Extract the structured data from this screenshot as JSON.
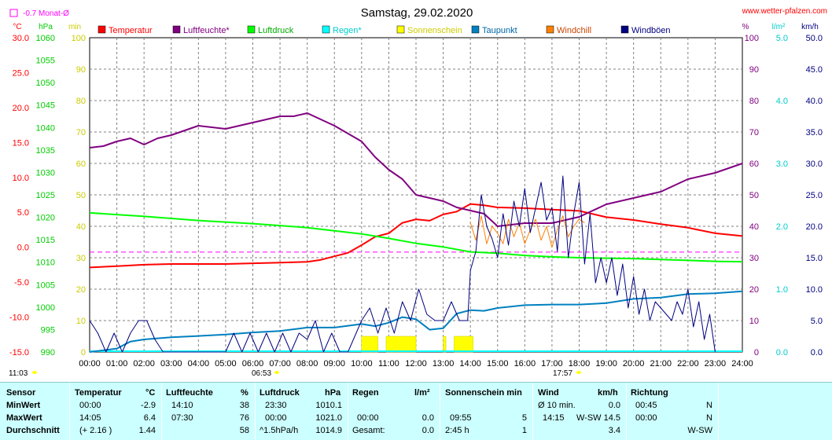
{
  "header": {
    "title": "Samstag, 29.02.2020",
    "website": "www.wetter-pfalzen.com",
    "monthly_avg_label": "-0.7 Monat-Ø",
    "sunrise": "06:53",
    "sunset": "17:57",
    "current_time": "11:03"
  },
  "chart_data": {
    "type": "line",
    "title": "Samstag, 29.02.2020",
    "x_ticks": [
      "00:00",
      "01:00",
      "02:00",
      "03:00",
      "04:00",
      "05:00",
      "06:00",
      "07:00",
      "08:00",
      "09:00",
      "10:00",
      "11:00",
      "12:00",
      "13:00",
      "14:00",
      "15:00",
      "16:00",
      "17:00",
      "18:00",
      "19:00",
      "20:00",
      "21:00",
      "22:00",
      "23:00",
      "24:00"
    ],
    "xlim": [
      0,
      24
    ],
    "axes": {
      "temperature": {
        "unit": "°C",
        "lim": [
          -15,
          30
        ],
        "ticks": [
          "30.0",
          "25.0",
          "20.0",
          "15.0",
          "10.0",
          "5.0",
          "0.0",
          "-5.0",
          "-10.0",
          "-15.0"
        ],
        "color": "#ff0000"
      },
      "pressure": {
        "unit": "hPa",
        "lim": [
          990,
          1060
        ],
        "ticks": [
          "1060",
          "1055",
          "1050",
          "1045",
          "1040",
          "1035",
          "1030",
          "1025",
          "1020",
          "1015",
          "1010",
          "1005",
          "1000",
          "995",
          "990"
        ],
        "color": "#00cc00"
      },
      "sunshine": {
        "unit": "min",
        "lim": [
          0,
          100
        ],
        "ticks": [
          "100",
          "90",
          "80",
          "70",
          "60",
          "50",
          "40",
          "30",
          "20",
          "10",
          "0"
        ],
        "color": "#cccc00"
      },
      "humidity": {
        "unit": "%",
        "lim": [
          0,
          100
        ],
        "ticks": [
          "100",
          "90",
          "80",
          "70",
          "60",
          "50",
          "40",
          "30",
          "20",
          "10",
          "0"
        ],
        "color": "#800080"
      },
      "rain": {
        "unit": "l/m²",
        "lim": [
          0,
          5
        ],
        "ticks": [
          "5.0",
          "4.0",
          "3.0",
          "2.0",
          "1.0",
          "0.0"
        ],
        "color": "#00cccc"
      },
      "wind": {
        "unit": "km/h",
        "lim": [
          0,
          50
        ],
        "ticks": [
          "50.0",
          "45.0",
          "40.0",
          "35.0",
          "30.0",
          "25.0",
          "20.0",
          "15.0",
          "10.0",
          "5.0",
          "0.0"
        ],
        "color": "#000080"
      }
    },
    "legend": [
      {
        "name": "Temperatur",
        "color": "#ff0000"
      },
      {
        "name": "Luftfeuchte*",
        "color": "#800080"
      },
      {
        "name": "Luftdruck",
        "color": "#00ff00"
      },
      {
        "name": "Regen*",
        "color": "#00ffff"
      },
      {
        "name": "Sonnenschein",
        "color": "#ffff00"
      },
      {
        "name": "Taupunkt",
        "color": "#0080c0"
      },
      {
        "name": "Windchill",
        "color": "#ff8000"
      },
      {
        "name": "Windböen",
        "color": "#000080"
      }
    ],
    "monthly_avg_temp": -0.7,
    "series": [
      {
        "name": "Temperatur",
        "axis": "temperature",
        "color": "#ff0000",
        "x": [
          0,
          1,
          2,
          3,
          4,
          5,
          6,
          7,
          8,
          8.5,
          9,
          9.5,
          10,
          10.5,
          11,
          11.5,
          12,
          12.5,
          13,
          13.5,
          14,
          14.5,
          15,
          16,
          17,
          18,
          19,
          20,
          21,
          22,
          23,
          24
        ],
        "y": [
          -2.9,
          -2.7,
          -2.5,
          -2.4,
          -2.4,
          -2.4,
          -2.3,
          -2.2,
          -2.1,
          -1.8,
          -1.3,
          -0.8,
          0.3,
          1.5,
          2.0,
          3.5,
          4.0,
          3.8,
          4.7,
          5.1,
          6.2,
          6.0,
          5.7,
          5.6,
          5.4,
          5.2,
          4.3,
          3.9,
          3.3,
          2.8,
          2.0,
          1.6
        ]
      },
      {
        "name": "Luftfeuchte*",
        "axis": "humidity",
        "color": "#800080",
        "x": [
          0,
          0.5,
          1,
          1.5,
          2,
          2.5,
          3,
          4,
          5,
          6,
          7,
          7.5,
          8,
          9,
          10,
          10.5,
          11,
          11.5,
          12,
          12.5,
          13,
          13.5,
          14,
          14.5,
          15,
          16,
          17,
          18,
          19,
          20,
          21,
          22,
          23,
          24
        ],
        "y": [
          65,
          65.5,
          67,
          68,
          66,
          68,
          69,
          72,
          71,
          73,
          75,
          75,
          76,
          72,
          67,
          62,
          58,
          55,
          50,
          49,
          48,
          46,
          45,
          44,
          40,
          41,
          41,
          43,
          47,
          49,
          51,
          55,
          57,
          60
        ]
      },
      {
        "name": "Luftdruck",
        "axis": "pressure",
        "color": "#00ff00",
        "x": [
          0,
          2,
          4,
          6,
          8,
          9,
          10,
          11,
          12,
          13,
          14,
          15,
          16,
          17,
          18,
          19,
          20,
          21,
          22,
          23,
          24
        ],
        "y": [
          1021,
          1020.2,
          1019.3,
          1018.6,
          1017.7,
          1017,
          1016.3,
          1015.3,
          1014.2,
          1013.4,
          1012.3,
          1012,
          1011.5,
          1011.2,
          1011,
          1010.9,
          1010.8,
          1010.6,
          1010.4,
          1010.2,
          1010.1
        ]
      },
      {
        "name": "Taupunkt",
        "axis": "temperature",
        "color": "#0080c0",
        "x": [
          0,
          1,
          1.5,
          2,
          3,
          4,
          5,
          6,
          7,
          8,
          9,
          10,
          10.5,
          11,
          11.5,
          12,
          12.5,
          13,
          13.5,
          14,
          14.5,
          15,
          16,
          17,
          18,
          19,
          20,
          21,
          22,
          23,
          24
        ],
        "y": [
          -15.0,
          -14.5,
          -13.5,
          -13.2,
          -12.9,
          -12.7,
          -12.5,
          -12.2,
          -12.0,
          -11.5,
          -11.5,
          -11.0,
          -11.3,
          -10.8,
          -10.0,
          -10.3,
          -11.8,
          -11.6,
          -9.5,
          -9.0,
          -9.1,
          -8.7,
          -8.3,
          -8.2,
          -8.2,
          -8.0,
          -7.4,
          -7.2,
          -6.7,
          -6.6,
          -6.3
        ]
      },
      {
        "name": "Windchill",
        "axis": "temperature",
        "color": "#ff8000",
        "x": [
          14,
          14.2,
          14.4,
          14.6,
          14.8,
          15,
          15.2,
          15.4,
          15.6,
          15.8,
          16,
          16.2,
          16.4,
          16.6,
          16.8,
          17,
          17.2,
          17.4,
          17.6,
          17.8,
          18,
          18.2
        ],
        "y": [
          3.5,
          1.0,
          4.5,
          0.5,
          3.0,
          2.0,
          0.5,
          4.0,
          1.5,
          3.5,
          0.5,
          2.5,
          4.0,
          1.0,
          3.0,
          0.0,
          2.5,
          4.5,
          1.5,
          3.0,
          4.0,
          3.5
        ]
      },
      {
        "name": "Windböen",
        "axis": "wind",
        "color": "#000080",
        "x": [
          0,
          0.3,
          0.6,
          0.9,
          1.2,
          1.5,
          1.8,
          2.1,
          2.4,
          2.7,
          3,
          3.5,
          4,
          4.5,
          5,
          5.3,
          5.6,
          5.9,
          6.2,
          6.5,
          6.8,
          7.1,
          7.4,
          7.7,
          8,
          8.3,
          8.6,
          8.9,
          9.2,
          9.5,
          10,
          10.3,
          10.6,
          10.9,
          11.2,
          11.5,
          11.8,
          12.1,
          12.4,
          12.7,
          13,
          13.3,
          13.6,
          13.9,
          14,
          14.2,
          14.4,
          14.6,
          14.8,
          15,
          15.2,
          15.4,
          15.6,
          15.8,
          16,
          16.2,
          16.4,
          16.6,
          16.8,
          17,
          17.2,
          17.4,
          17.6,
          17.8,
          18,
          18.2,
          18.4,
          18.6,
          18.8,
          19,
          19.2,
          19.4,
          19.6,
          19.8,
          20,
          20.2,
          20.4,
          20.6,
          20.8,
          21,
          21.2,
          21.4,
          21.6,
          21.8,
          22,
          22.2,
          22.4,
          22.6,
          22.8,
          23
        ],
        "y": [
          5,
          3,
          0,
          3,
          0,
          3,
          5,
          5,
          2,
          0,
          0,
          0,
          0,
          0,
          0,
          3,
          0,
          3,
          0,
          3,
          0,
          3,
          0,
          3,
          2,
          5,
          0,
          3,
          0,
          0,
          5,
          7,
          3,
          7,
          3,
          8,
          5,
          10,
          6,
          5,
          5,
          8,
          5,
          5,
          13,
          16,
          25,
          20,
          18,
          15,
          22,
          17,
          24,
          20,
          26,
          19,
          23,
          27,
          21,
          23,
          16,
          28,
          15,
          22,
          27,
          14,
          22,
          11,
          15,
          11,
          15,
          9,
          14,
          7,
          12,
          6,
          10,
          5,
          8,
          7,
          6,
          5,
          8,
          6,
          10,
          4,
          8,
          2,
          6,
          0
        ]
      }
    ],
    "sunshine_bars": [
      {
        "start": 10.0,
        "end": 10.6,
        "value": 5
      },
      {
        "start": 10.9,
        "end": 12.0,
        "value": 5
      },
      {
        "start": 13.0,
        "end": 13.1,
        "value": 5
      },
      {
        "start": 13.4,
        "end": 14.1,
        "value": 5
      }
    ]
  },
  "stats": {
    "headers": {
      "sensor": "Sensor",
      "temp": "Temperatur",
      "temp_unit": "°C",
      "hum": "Luftfeuchte",
      "hum_unit": "%",
      "press": "Luftdruck",
      "press_unit": "hPa",
      "rain": "Regen",
      "rain_unit": "l/m²",
      "sun": "Sonnenschein min",
      "wind": "Wind",
      "wind_unit": "km/h",
      "dir": "Richtung"
    },
    "rows": [
      {
        "label": "MinWert",
        "temp_time": "00:00",
        "temp_val": "-2.9",
        "hum_time": "14:10",
        "hum_val": "38",
        "press_time": "23:30",
        "press_val": "1010.1",
        "rain_time": "",
        "rain_val": "",
        "sun_time": "",
        "sun_val": "",
        "wind_time": "Ø 10 min.",
        "wind_val": "0.0",
        "dir_time": "00:45",
        "dir_val": "N"
      },
      {
        "label": "MaxWert",
        "temp_time": "14:05",
        "temp_val": "6.4",
        "hum_time": "07:30",
        "hum_val": "76",
        "press_time": "00:00",
        "press_val": "1021.0",
        "rain_time": "00:00",
        "rain_val": "0.0",
        "sun_time": "09:55",
        "sun_val": "5",
        "wind_time": "14:15",
        "wind_val": "W-SW 14.5",
        "dir_time": "00:00",
        "dir_val": "N"
      },
      {
        "label": "Durchschnitt",
        "temp_time": "(+ 2.16 )",
        "temp_val": "1.44",
        "hum_time": "",
        "hum_val": "58",
        "press_time": "^1.5hPa/h",
        "press_val": "1014.9",
        "rain_time": "Gesamt:",
        "rain_val": "0.0",
        "sun_time": "2:45 h",
        "sun_val": "1",
        "wind_time": "",
        "wind_val": "3.4",
        "dir_time": "",
        "dir_val": "W-SW"
      }
    ]
  }
}
